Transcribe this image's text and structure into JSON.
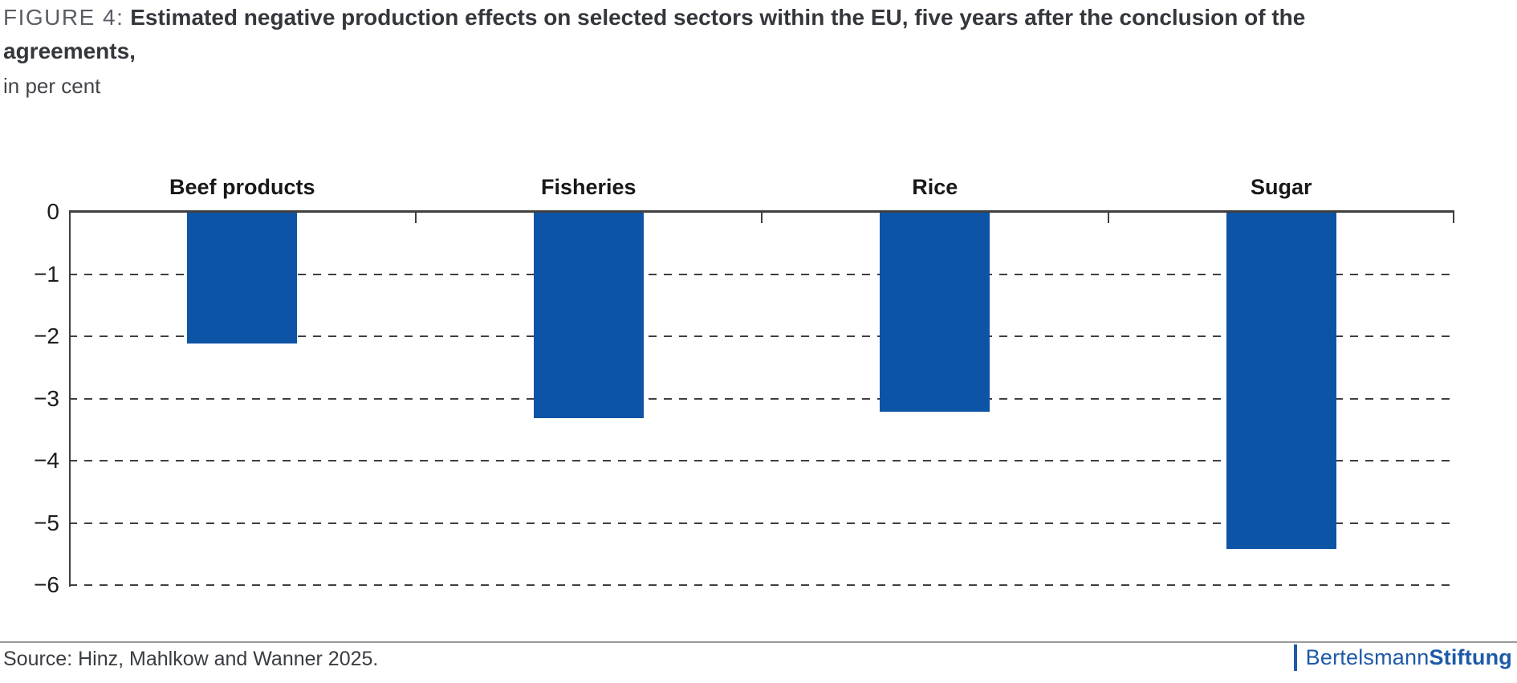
{
  "figure": {
    "label": "FIGURE 4:",
    "title": "Estimated negative production effects on selected sectors within the EU, five years after the conclusion of the agreements,",
    "subtitle": "in per cent"
  },
  "chart_data": {
    "type": "bar",
    "categories": [
      "Beef products",
      "Fisheries",
      "Rice",
      "Sugar"
    ],
    "values": [
      -2.1,
      -3.3,
      -3.2,
      -5.4
    ],
    "title": "Estimated negative production effects on selected sectors within the EU, five years after the conclusion of the agreements,",
    "subtitle": "in per cent",
    "xlabel": "",
    "ylabel": "",
    "ylim": [
      -6,
      0
    ],
    "yticks": [
      0,
      -1,
      -2,
      -3,
      -4,
      -5,
      -6
    ],
    "grid": "horizontal-dashed",
    "legend": "none",
    "bar_color": "#0d54a6"
  },
  "footer": {
    "source": "Source: Hinz, Mahlkow and Wanner 2025.",
    "logo": {
      "brand": "Bertelsmann",
      "brand_bold": "Stiftung"
    }
  },
  "colors": {
    "bar": "#0d54a6",
    "logo_blue": "#1e5aa8",
    "axis": "#3f3f3f",
    "rule": "#9b9b9b"
  }
}
